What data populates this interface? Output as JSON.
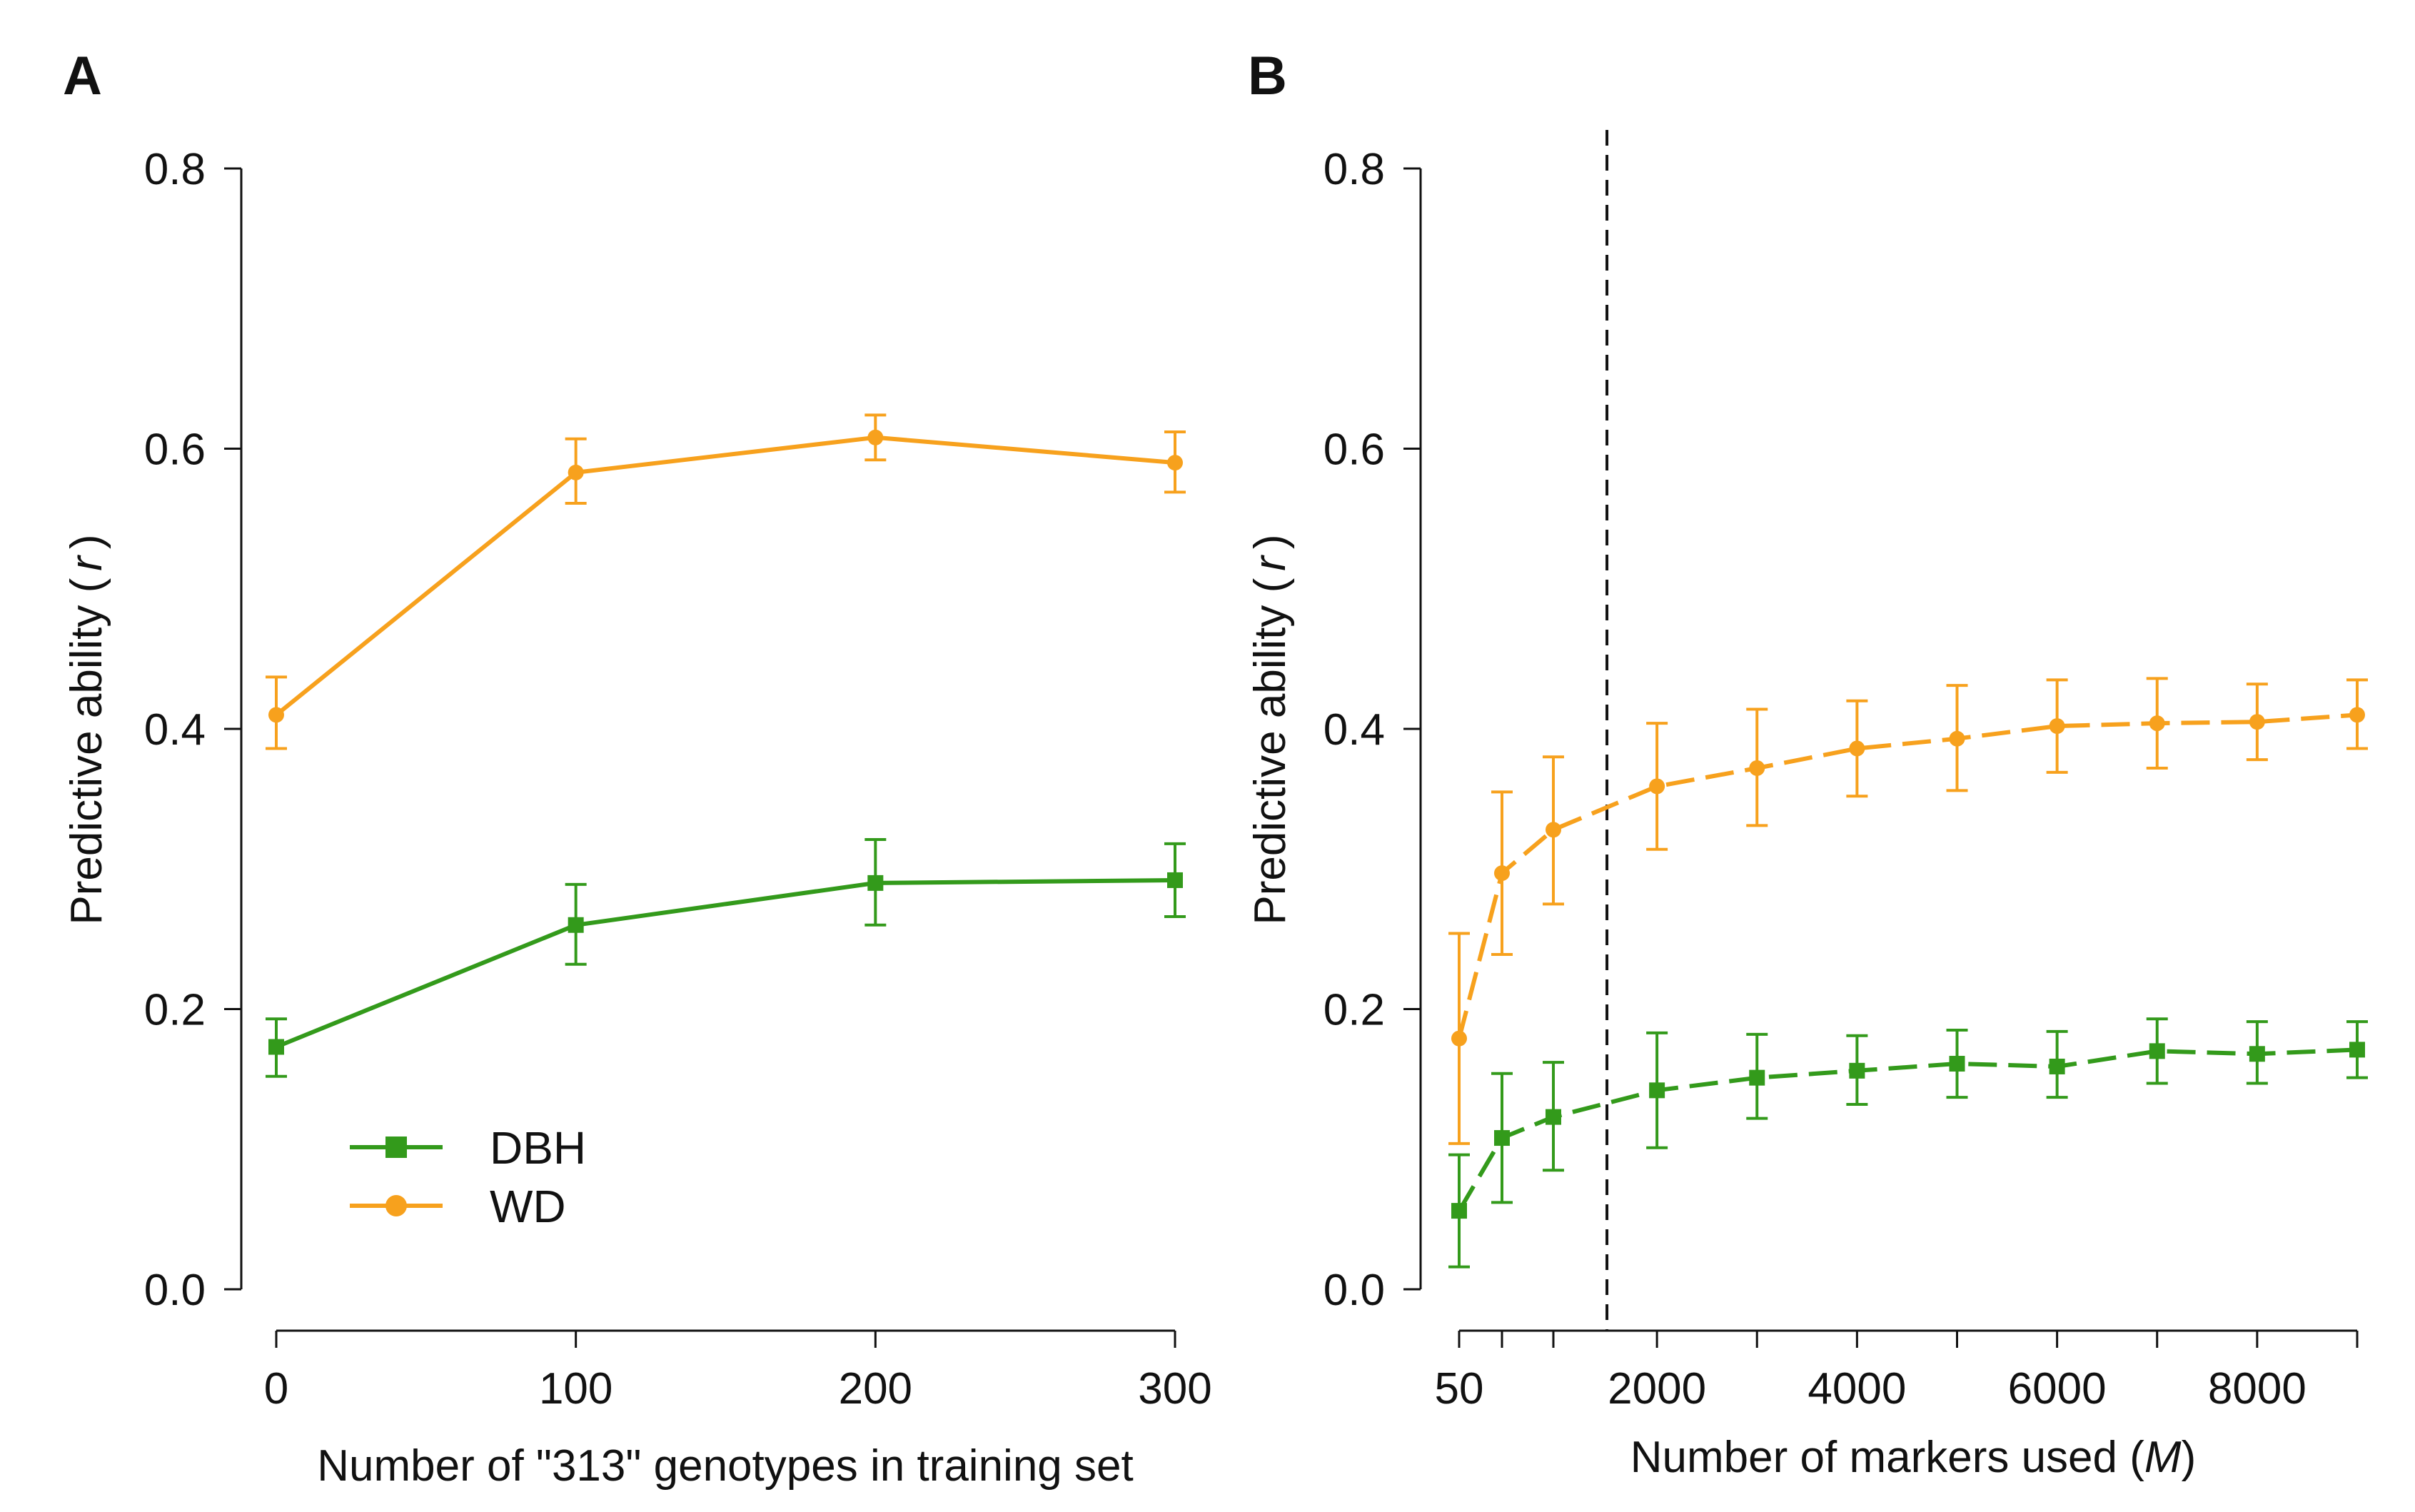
{
  "figure": {
    "panel_a_label": "A",
    "panel_b_label": "B"
  },
  "colors": {
    "dbh": "#339a1b",
    "wd": "#f7a11d",
    "axis": "#111111"
  },
  "chart_data": [
    {
      "id": "A",
      "type": "line",
      "title": "",
      "xlabel": "Number of \"313\" genotypes in training set",
      "ylabel": "Predictive ability (r)",
      "ylabel_main": "Predictive ability (",
      "ylabel_var": "r",
      "ylabel_end": ")",
      "xlim": [
        0,
        300
      ],
      "ylim": [
        0,
        0.8
      ],
      "xticks": [
        0,
        100,
        200,
        300
      ],
      "xtick_labels": [
        "0",
        "100",
        "200",
        "300"
      ],
      "yticks": [
        0,
        0.2,
        0.4,
        0.6,
        0.8
      ],
      "ytick_labels": [
        "0.0",
        "0.2",
        "0.4",
        "0.6",
        "0.8"
      ],
      "legend": {
        "position": "bottom-left",
        "entries": [
          "DBH",
          "WD"
        ]
      },
      "series": [
        {
          "name": "DBH",
          "color_key": "dbh",
          "marker": "square",
          "line": "solid",
          "x": [
            0,
            100,
            200,
            300
          ],
          "y": [
            0.173,
            0.26,
            0.29,
            0.292
          ],
          "err_low": [
            0.152,
            0.232,
            0.26,
            0.266
          ],
          "err_high": [
            0.193,
            0.289,
            0.321,
            0.318
          ]
        },
        {
          "name": "WD",
          "color_key": "wd",
          "marker": "circle",
          "line": "solid",
          "x": [
            0,
            100,
            200,
            300
          ],
          "y": [
            0.41,
            0.583,
            0.608,
            0.59
          ],
          "err_low": [
            0.386,
            0.561,
            0.592,
            0.569
          ],
          "err_high": [
            0.437,
            0.607,
            0.624,
            0.612
          ]
        }
      ]
    },
    {
      "id": "B",
      "type": "line",
      "title": "",
      "xlabel": "Number of markers used (M)",
      "xlabel_main": "Number of markers used (",
      "xlabel_var": "M",
      "xlabel_end": ")",
      "ylabel": "Predictive ability (r)",
      "ylabel_main": "Predictive ability (",
      "ylabel_var": "r",
      "ylabel_end": ")",
      "xlim": [
        50,
        9000
      ],
      "ylim": [
        0,
        0.8
      ],
      "x_scale": "piecewise: 50-1000 expanded, 1000-9000 linear",
      "xticks": [
        50,
        500,
        1000,
        2000,
        3000,
        4000,
        5000,
        6000,
        7000,
        8000,
        9000
      ],
      "xtick_labels": [
        "50",
        "",
        "",
        "2000",
        "",
        "4000",
        "",
        "6000",
        "",
        "8000",
        ""
      ],
      "yticks": [
        0,
        0.2,
        0.4,
        0.6,
        0.8
      ],
      "ytick_labels": [
        "0.0",
        "0.2",
        "0.4",
        "0.6",
        "0.8"
      ],
      "reference_line": {
        "x": 1500,
        "style": "dashed"
      },
      "series": [
        {
          "name": "DBH",
          "color_key": "dbh",
          "marker": "square",
          "line": "dashed",
          "x": [
            50,
            500,
            1000,
            2000,
            3000,
            4000,
            5000,
            6000,
            7000,
            8000,
            9000
          ],
          "y": [
            0.056,
            0.108,
            0.123,
            0.142,
            0.151,
            0.156,
            0.161,
            0.159,
            0.17,
            0.168,
            0.171
          ],
          "err_low": [
            0.016,
            0.062,
            0.085,
            0.101,
            0.122,
            0.132,
            0.137,
            0.137,
            0.147,
            0.147,
            0.151
          ],
          "err_high": [
            0.096,
            0.154,
            0.162,
            0.183,
            0.182,
            0.181,
            0.185,
            0.184,
            0.193,
            0.191,
            0.191
          ]
        },
        {
          "name": "WD",
          "color_key": "wd",
          "marker": "circle",
          "line": "dashed",
          "x": [
            50,
            500,
            1000,
            2000,
            3000,
            4000,
            5000,
            6000,
            7000,
            8000,
            9000
          ],
          "y": [
            0.179,
            0.297,
            0.328,
            0.359,
            0.372,
            0.386,
            0.393,
            0.402,
            0.404,
            0.405,
            0.41
          ],
          "err_low": [
            0.104,
            0.239,
            0.275,
            0.314,
            0.331,
            0.352,
            0.356,
            0.369,
            0.372,
            0.378,
            0.386
          ],
          "err_high": [
            0.254,
            0.355,
            0.38,
            0.404,
            0.414,
            0.42,
            0.431,
            0.435,
            0.436,
            0.432,
            0.435
          ]
        }
      ]
    }
  ]
}
